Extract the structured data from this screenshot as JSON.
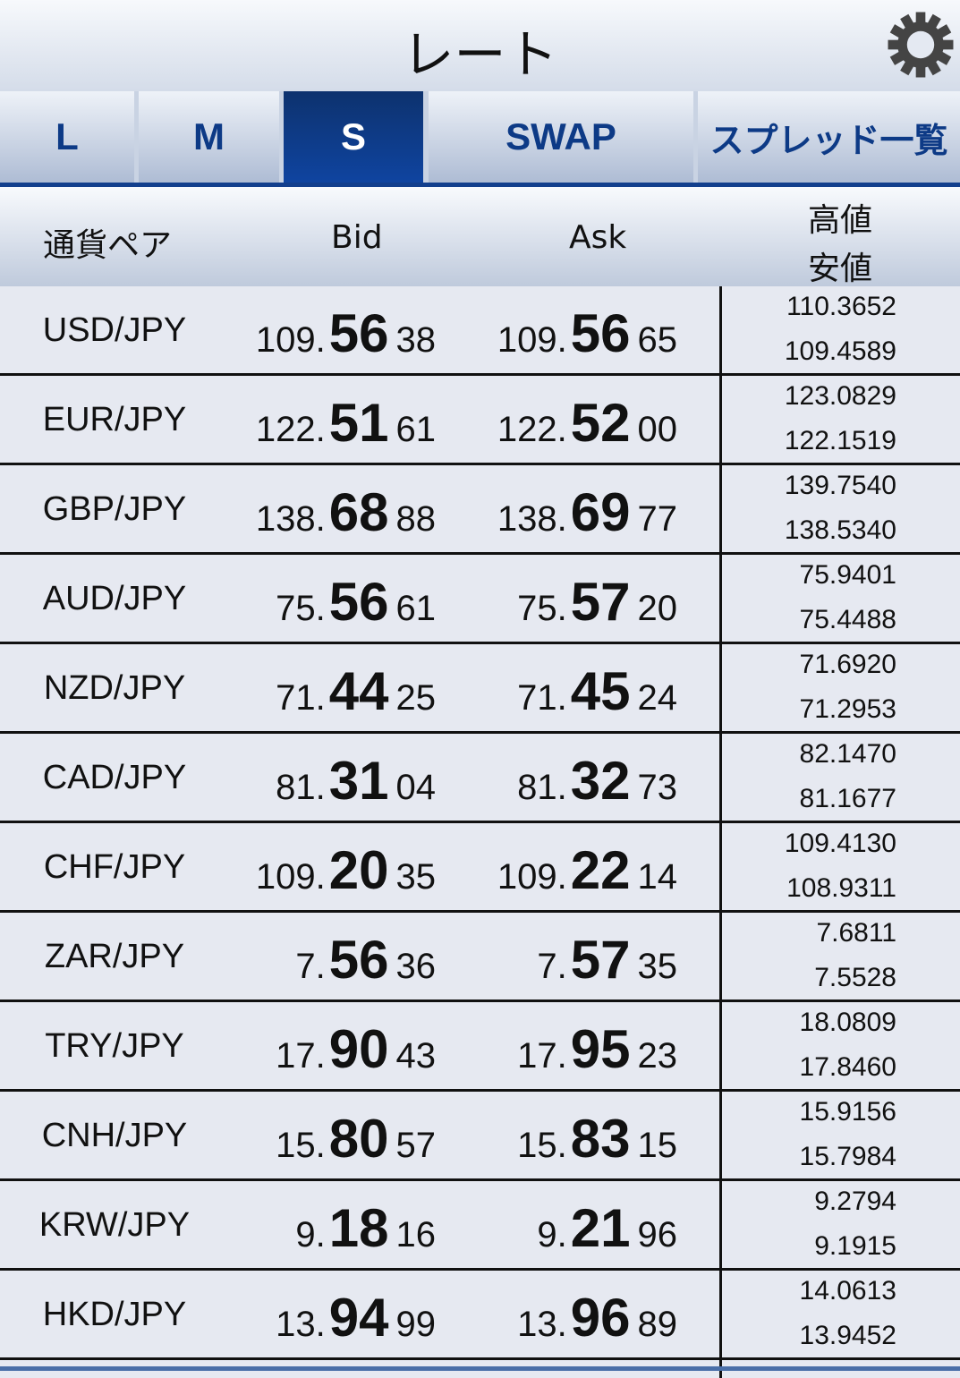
{
  "header": {
    "title": "レート",
    "settings_icon": "gear-icon"
  },
  "tabs": [
    {
      "label": "L",
      "active": false
    },
    {
      "label": "M",
      "active": false
    },
    {
      "label": "S",
      "active": true
    },
    {
      "label": "SWAP",
      "active": false
    },
    {
      "label": "スプレッド一覧",
      "active": false
    }
  ],
  "columns": {
    "pair": "通貨ペア",
    "bid": "Bid",
    "ask": "Ask",
    "high": "高値",
    "low": "安値"
  },
  "colors": {
    "accent": "#123f8d",
    "active_tab": "#0f44a0",
    "tab_text": "#0d3a86"
  },
  "rows": [
    {
      "pair": "USD/JPY",
      "bid": [
        "109.",
        "56",
        "38"
      ],
      "ask": [
        "109.",
        "56",
        "65"
      ],
      "high": "110.3652",
      "low": "109.4589"
    },
    {
      "pair": "EUR/JPY",
      "bid": [
        "122.",
        "51",
        "61"
      ],
      "ask": [
        "122.",
        "52",
        "00"
      ],
      "high": "123.0829",
      "low": "122.1519"
    },
    {
      "pair": "GBP/JPY",
      "bid": [
        "138.",
        "68",
        "88"
      ],
      "ask": [
        "138.",
        "69",
        "77"
      ],
      "high": "139.7540",
      "low": "138.5340"
    },
    {
      "pair": "AUD/JPY",
      "bid": [
        "75.",
        "56",
        "61"
      ],
      "ask": [
        "75.",
        "57",
        "20"
      ],
      "high": "75.9401",
      "low": "75.4488"
    },
    {
      "pair": "NZD/JPY",
      "bid": [
        "71.",
        "44",
        "25"
      ],
      "ask": [
        "71.",
        "45",
        "24"
      ],
      "high": "71.6920",
      "low": "71.2953"
    },
    {
      "pair": "CAD/JPY",
      "bid": [
        "81.",
        "31",
        "04"
      ],
      "ask": [
        "81.",
        "32",
        "73"
      ],
      "high": "82.1470",
      "low": "81.1677"
    },
    {
      "pair": "CHF/JPY",
      "bid": [
        "109.",
        "20",
        "35"
      ],
      "ask": [
        "109.",
        "22",
        "14"
      ],
      "high": "109.4130",
      "low": "108.9311"
    },
    {
      "pair": "ZAR/JPY",
      "bid": [
        "7.",
        "56",
        "36"
      ],
      "ask": [
        "7.",
        "57",
        "35"
      ],
      "high": "7.6811",
      "low": "7.5528"
    },
    {
      "pair": "TRY/JPY",
      "bid": [
        "17.",
        "90",
        "43"
      ],
      "ask": [
        "17.",
        "95",
        "23"
      ],
      "high": "18.0809",
      "low": "17.8460"
    },
    {
      "pair": "CNH/JPY",
      "bid": [
        "15.",
        "80",
        "57"
      ],
      "ask": [
        "15.",
        "83",
        "15"
      ],
      "high": "15.9156",
      "low": "15.7984"
    },
    {
      "pair": "KRW/JPY",
      "bid": [
        "9.",
        "18",
        "16"
      ],
      "ask": [
        "9.",
        "21",
        "96"
      ],
      "high": "9.2794",
      "low": "9.1915"
    },
    {
      "pair": "HKD/JPY",
      "bid": [
        "13.",
        "94",
        "99"
      ],
      "ask": [
        "13.",
        "96",
        "89"
      ],
      "high": "14.0613",
      "low": "13.9452"
    }
  ]
}
